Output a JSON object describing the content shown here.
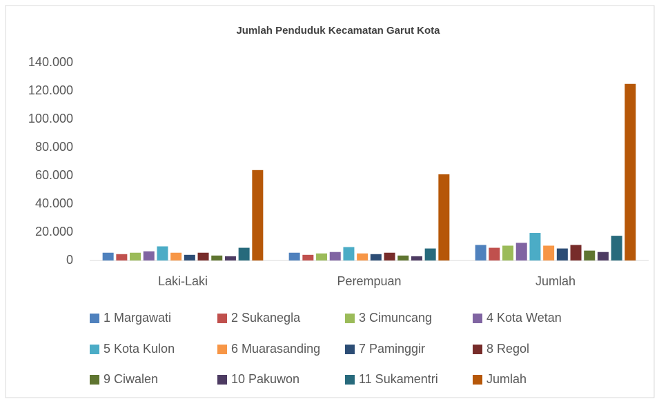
{
  "chart_data": {
    "type": "bar",
    "title": "Jumlah Penduduk Kecamatan Garut Kota",
    "categories": [
      "Laki-Laki",
      "Perempuan",
      "Jumlah"
    ],
    "series": [
      {
        "name": "1 Margawati",
        "color": "#4f81bd",
        "values": [
          5500,
          5500,
          11000
        ]
      },
      {
        "name": "2 Sukanegla",
        "color": "#c0504d",
        "values": [
          4500,
          4000,
          9000
        ]
      },
      {
        "name": "3 Cimuncang",
        "color": "#9bbb59",
        "values": [
          5500,
          5000,
          10500
        ]
      },
      {
        "name": "4 Kota Wetan",
        "color": "#8064a2",
        "values": [
          6500,
          6000,
          12500
        ]
      },
      {
        "name": "5 Kota Kulon",
        "color": "#4bacc6",
        "values": [
          10000,
          9500,
          19500
        ]
      },
      {
        "name": "6 Muarasanding",
        "color": "#f79646",
        "values": [
          5500,
          5000,
          10500
        ]
      },
      {
        "name": "7 Paminggir",
        "color": "#2c4d75",
        "values": [
          4000,
          4500,
          8500
        ]
      },
      {
        "name": "8 Regol",
        "color": "#772c2a",
        "values": [
          5500,
          5500,
          11000
        ]
      },
      {
        "name": "9 Ciwalen",
        "color": "#5f7530",
        "values": [
          3500,
          3500,
          7000
        ]
      },
      {
        "name": "10 Pakuwon",
        "color": "#4d3b62",
        "values": [
          3000,
          3000,
          6000
        ]
      },
      {
        "name": "11 Sukamentri",
        "color": "#276a7c",
        "values": [
          9000,
          8500,
          17500
        ]
      },
      {
        "name": "Jumlah",
        "color": "#b65708",
        "values": [
          64000,
          61000,
          125000
        ]
      }
    ],
    "ylim": [
      0,
      140000
    ],
    "yticks": [
      0,
      {
        "value": 20000,
        "label": "20.000"
      },
      {
        "value": 40000,
        "label": "40.000"
      },
      {
        "value": 60000,
        "label": "60.000"
      },
      {
        "value": 80000,
        "label": "80.000"
      },
      {
        "value": 100000,
        "label": "100.000"
      },
      {
        "value": 120000,
        "label": "120.000"
      },
      {
        "value": 140000,
        "label": "140.000"
      }
    ]
  }
}
